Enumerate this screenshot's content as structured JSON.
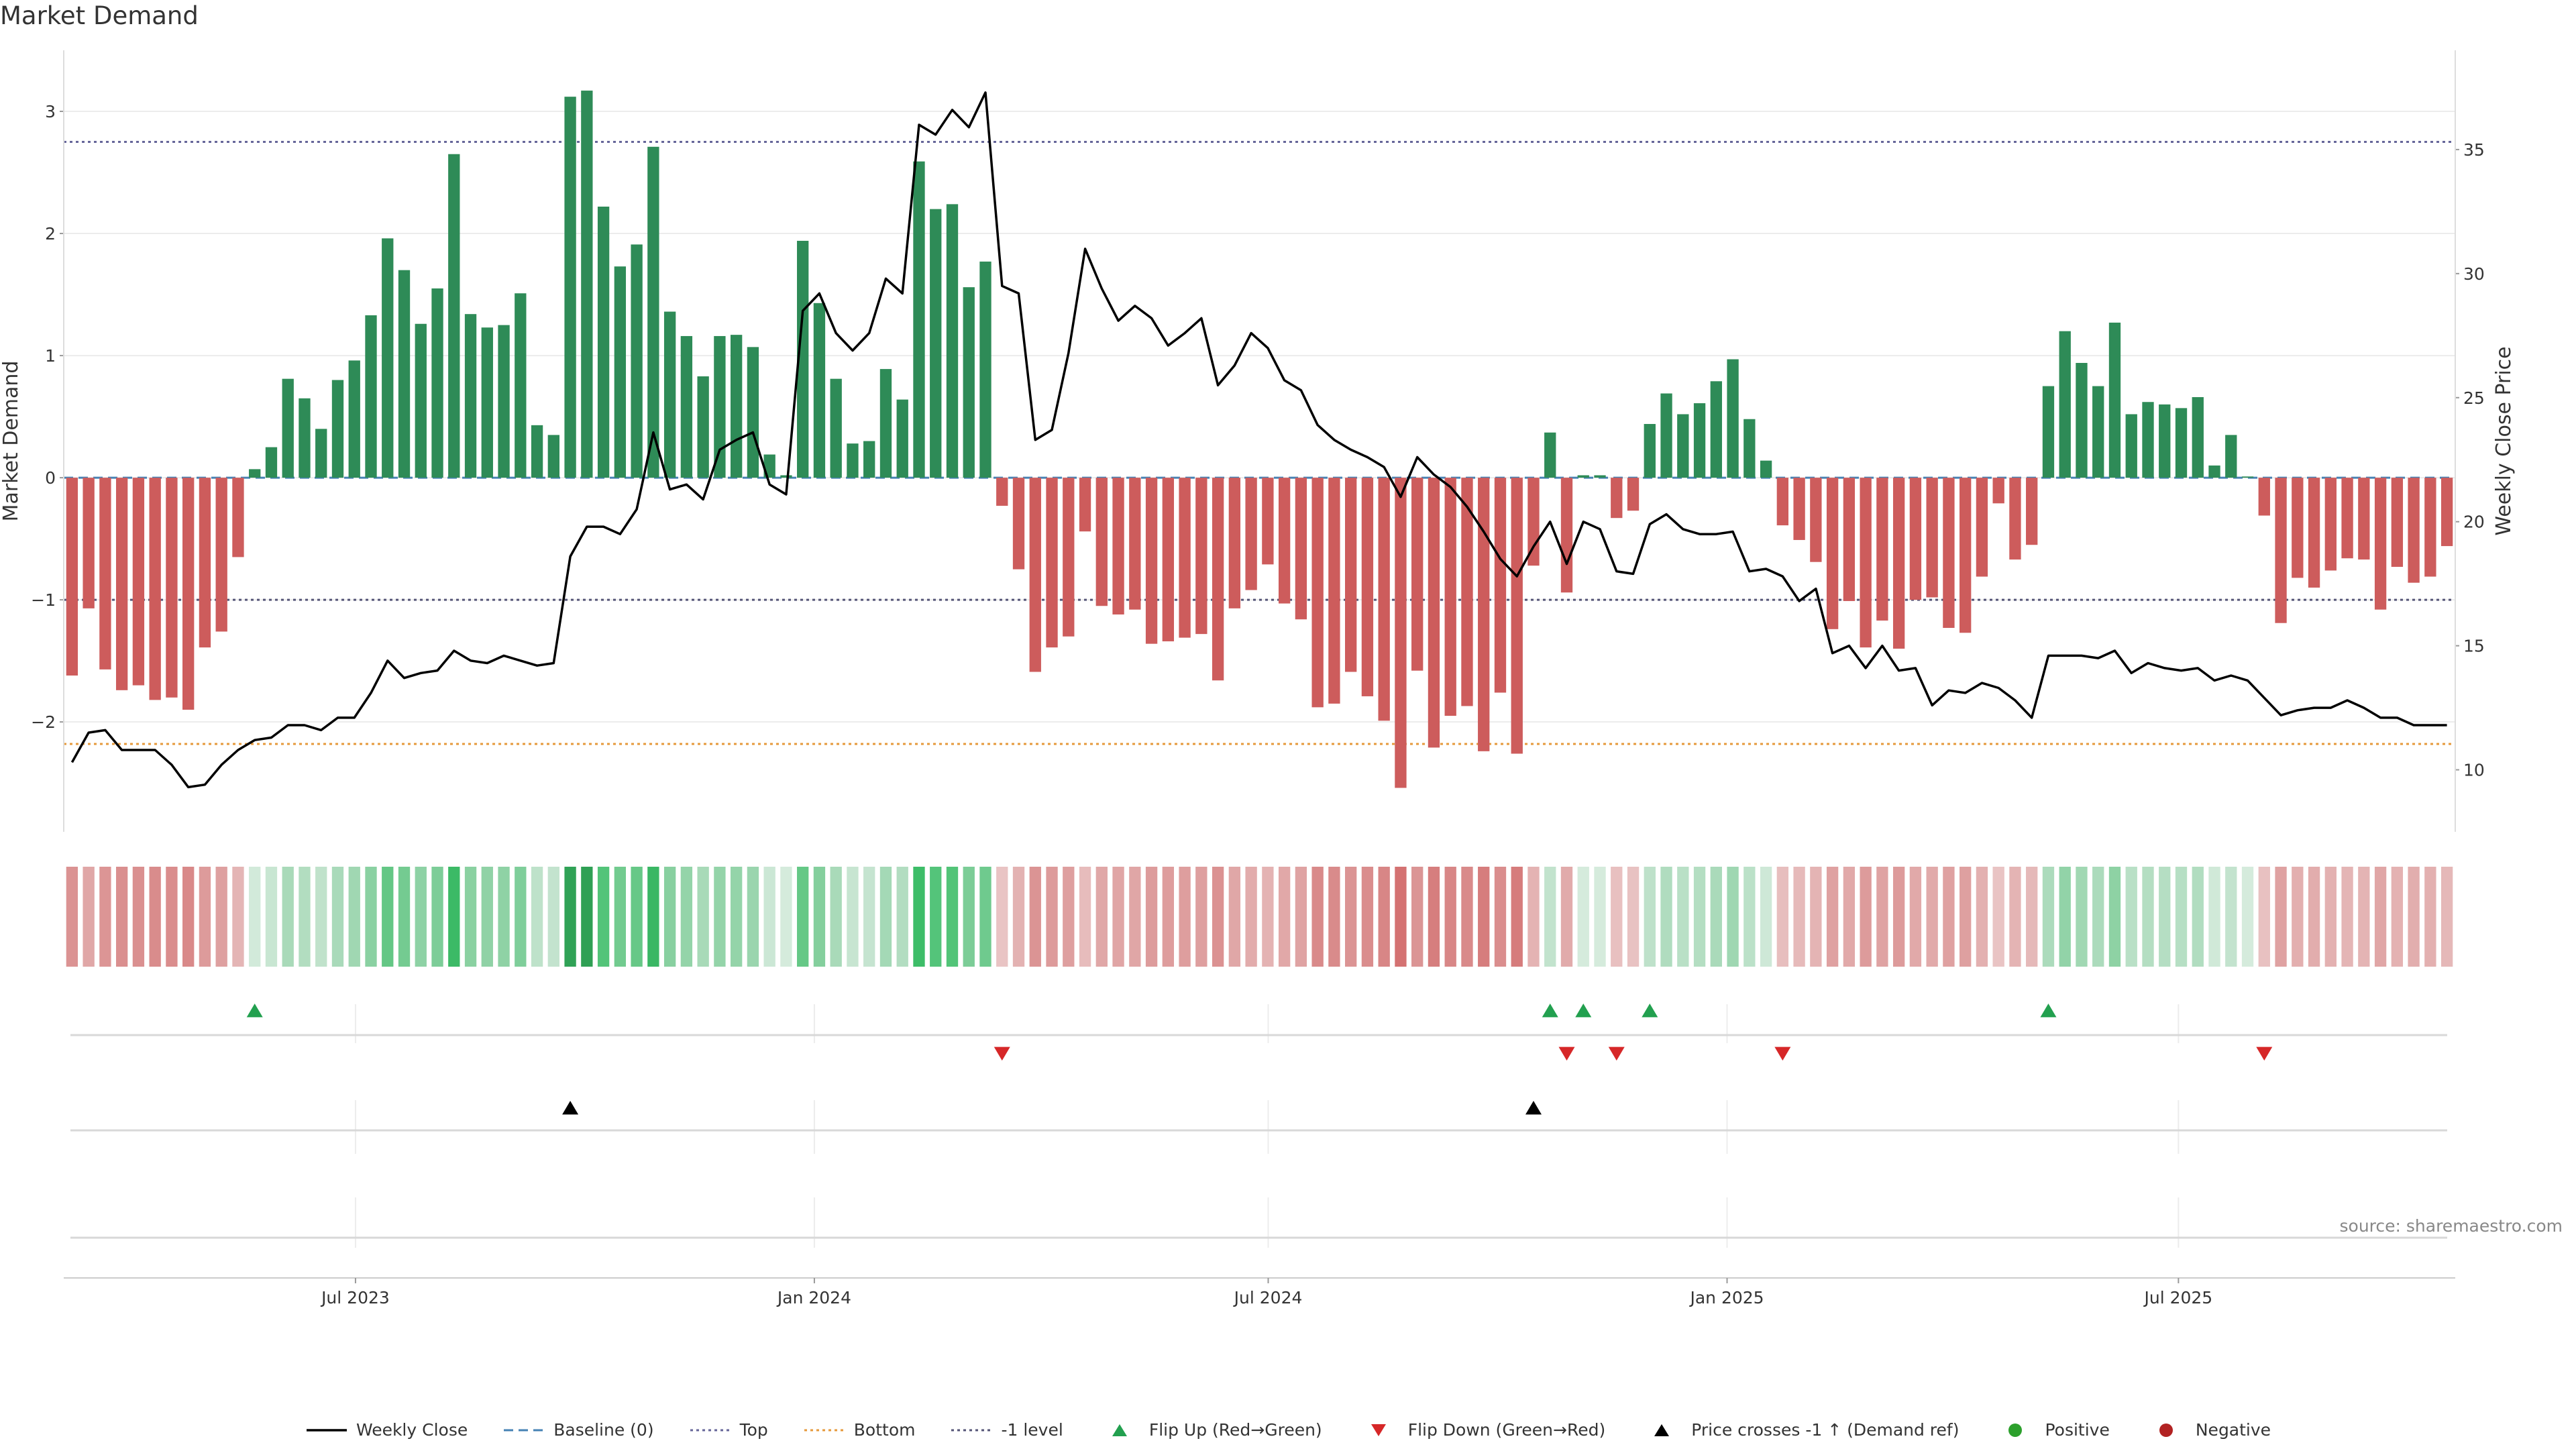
{
  "title": "Market Demand",
  "source": "source: sharemaestro.com",
  "colors": {
    "positive_bar": "#2e8b57",
    "negative_bar": "#cd5c5c",
    "price_line": "#000000",
    "baseline": "#4682b4",
    "top_line": "#666699",
    "bottom_line": "#e69a3c",
    "minus1_line": "#555577",
    "flip_up": "#22a04f",
    "flip_down": "#d62728",
    "price_cross": "#000000",
    "positive_dot": "#2ca02c",
    "negative_dot": "#b22222"
  },
  "legend": [
    {
      "label": "Weekly Close",
      "symbol": "solid-line",
      "color": "#000000"
    },
    {
      "label": "Baseline (0)",
      "symbol": "dashed-line",
      "color": "#4682b4"
    },
    {
      "label": "Top",
      "symbol": "dotted-line",
      "color": "#666699"
    },
    {
      "label": "Bottom",
      "symbol": "dotted-line",
      "color": "#e69a3c"
    },
    {
      "label": "-1 level",
      "symbol": "dotted-line",
      "color": "#555577"
    },
    {
      "label": "Flip Up (Red→Green)",
      "symbol": "triangle-up",
      "color": "#22a04f"
    },
    {
      "label": "Flip Down (Green→Red)",
      "symbol": "triangle-down",
      "color": "#d62728"
    },
    {
      "label": "Price crosses -1 ↑ (Demand ref)",
      "symbol": "triangle-up",
      "color": "#000000"
    },
    {
      "label": "Positive",
      "symbol": "circle",
      "color": "#2ca02c"
    },
    {
      "label": "Negative",
      "symbol": "circle",
      "color": "#b22222"
    }
  ],
  "chart_data": {
    "type": "bar",
    "title": "Market Demand",
    "ylabel": "Market Demand",
    "ylabel_right": "Weekly Close Price",
    "ylim": [
      -2.9,
      3.5
    ],
    "ylim_right": [
      7.5,
      39.0
    ],
    "yticks": [
      3,
      2,
      1,
      0,
      -1,
      -2
    ],
    "yticks_right": [
      35,
      30,
      25,
      20,
      15,
      10
    ],
    "ytick_labels": [
      "3",
      "2",
      "1",
      "0",
      "−1",
      "−2"
    ],
    "ytick_labels_right": [
      "35",
      "30",
      "25",
      "20",
      "15",
      "10"
    ],
    "x_start": "2023-03-06",
    "x_end": "2025-10-20",
    "xticks": [
      {
        "date": "2023-07-01",
        "label": "Jul 2023"
      },
      {
        "date": "2024-01-01",
        "label": "Jan 2024"
      },
      {
        "date": "2024-07-01",
        "label": "Jul 2024"
      },
      {
        "date": "2025-01-01",
        "label": "Jan 2025"
      },
      {
        "date": "2025-07-01",
        "label": "Jul 2025"
      }
    ],
    "grid": true,
    "legend_position": "bottom",
    "reference_lines": {
      "baseline": 0,
      "top": 2.75,
      "bottom": -2.18,
      "minus1": -1
    },
    "series": [
      {
        "name": "Market Demand",
        "kind": "bar",
        "values": [
          -1.62,
          -1.07,
          -1.57,
          -1.74,
          -1.7,
          -1.82,
          -1.8,
          -1.9,
          -1.39,
          -1.26,
          -0.65,
          0.07,
          0.25,
          0.81,
          0.65,
          0.4,
          0.8,
          0.96,
          1.33,
          1.96,
          1.7,
          1.26,
          1.55,
          2.65,
          1.34,
          1.23,
          1.25,
          1.51,
          0.43,
          0.35,
          3.12,
          3.17,
          2.22,
          1.73,
          1.91,
          2.71,
          1.36,
          1.16,
          0.83,
          1.16,
          1.17,
          1.07,
          0.19,
          0.02,
          1.94,
          1.43,
          0.81,
          0.28,
          0.3,
          0.89,
          0.64,
          2.59,
          2.2,
          2.24,
          1.56,
          1.77,
          -0.23,
          -0.75,
          -1.59,
          -1.39,
          -1.3,
          -0.44,
          -1.05,
          -1.12,
          -1.08,
          -1.36,
          -1.34,
          -1.31,
          -1.28,
          -1.66,
          -1.07,
          -0.92,
          -0.71,
          -1.03,
          -1.16,
          -1.88,
          -1.85,
          -1.59,
          -1.79,
          -1.99,
          -2.54,
          -1.58,
          -2.21,
          -1.95,
          -1.87,
          -2.24,
          -1.76,
          -2.26,
          -0.72,
          0.37,
          -0.94,
          0.02,
          0.02,
          -0.33,
          -0.27,
          0.44,
          0.69,
          0.52,
          0.61,
          0.79,
          0.97,
          0.48,
          0.14,
          -0.39,
          -0.51,
          -0.69,
          -1.24,
          -1.01,
          -1.39,
          -1.17,
          -1.4,
          -1.0,
          -0.98,
          -1.23,
          -1.27,
          -0.81,
          -0.21,
          -0.67,
          -0.55,
          0.75,
          1.2,
          0.94,
          0.75,
          1.27,
          0.52,
          0.62,
          0.6,
          0.57,
          0.66,
          0.1,
          0.35,
          0.01,
          -0.31,
          -1.19,
          -0.82,
          -0.9,
          -0.76,
          -0.66,
          -0.67,
          -1.08,
          -0.73,
          -0.86,
          -0.81,
          -0.56
        ]
      },
      {
        "name": "Weekly Close",
        "kind": "line",
        "axis": "right",
        "values": [
          10.3,
          11.5,
          11.6,
          10.8,
          10.8,
          10.8,
          10.2,
          9.3,
          9.4,
          10.2,
          10.8,
          11.2,
          11.3,
          11.8,
          11.8,
          11.6,
          12.1,
          12.1,
          13.1,
          14.4,
          13.7,
          13.9,
          14.0,
          14.8,
          14.4,
          14.3,
          14.6,
          14.4,
          14.2,
          14.3,
          18.6,
          19.8,
          19.8,
          19.5,
          20.5,
          23.6,
          21.3,
          21.5,
          20.9,
          22.9,
          23.3,
          23.6,
          21.5,
          21.1,
          28.5,
          29.2,
          27.6,
          26.9,
          27.6,
          29.8,
          29.2,
          36.0,
          35.6,
          36.6,
          35.9,
          37.3,
          29.5,
          29.2,
          23.3,
          23.7,
          26.8,
          31.0,
          29.4,
          28.1,
          28.7,
          28.2,
          27.1,
          27.6,
          28.2,
          25.5,
          26.3,
          27.6,
          27.0,
          25.7,
          25.3,
          23.9,
          23.3,
          22.9,
          22.6,
          22.2,
          21.0,
          22.6,
          21.9,
          21.4,
          20.6,
          19.6,
          18.5,
          17.8,
          19.0,
          20.0,
          18.3,
          20.0,
          19.7,
          18.0,
          17.9,
          19.9,
          20.3,
          19.7,
          19.5,
          19.5,
          19.6,
          18.0,
          18.1,
          17.8,
          16.8,
          17.3,
          14.7,
          15.0,
          14.1,
          15.0,
          14.0,
          14.1,
          12.6,
          13.2,
          13.1,
          13.5,
          13.3,
          12.8,
          12.1,
          14.6,
          14.6,
          14.6,
          14.5,
          14.8,
          13.9,
          14.3,
          14.1,
          14.0,
          14.1,
          13.6,
          13.8,
          13.6,
          12.9,
          12.2,
          12.4,
          12.5,
          12.5,
          12.8,
          12.5,
          12.1,
          12.1,
          11.8,
          11.8,
          11.8
        ]
      }
    ],
    "heat_strip": "one cell per weekly bar; green for positive demand, red for negative, saturation by magnitude",
    "flip_up_weeks": [
      11,
      89,
      91,
      95,
      119
    ],
    "flip_down_weeks": [
      56,
      90,
      93,
      103,
      132
    ],
    "price_cross_weeks": [
      30,
      88
    ]
  }
}
